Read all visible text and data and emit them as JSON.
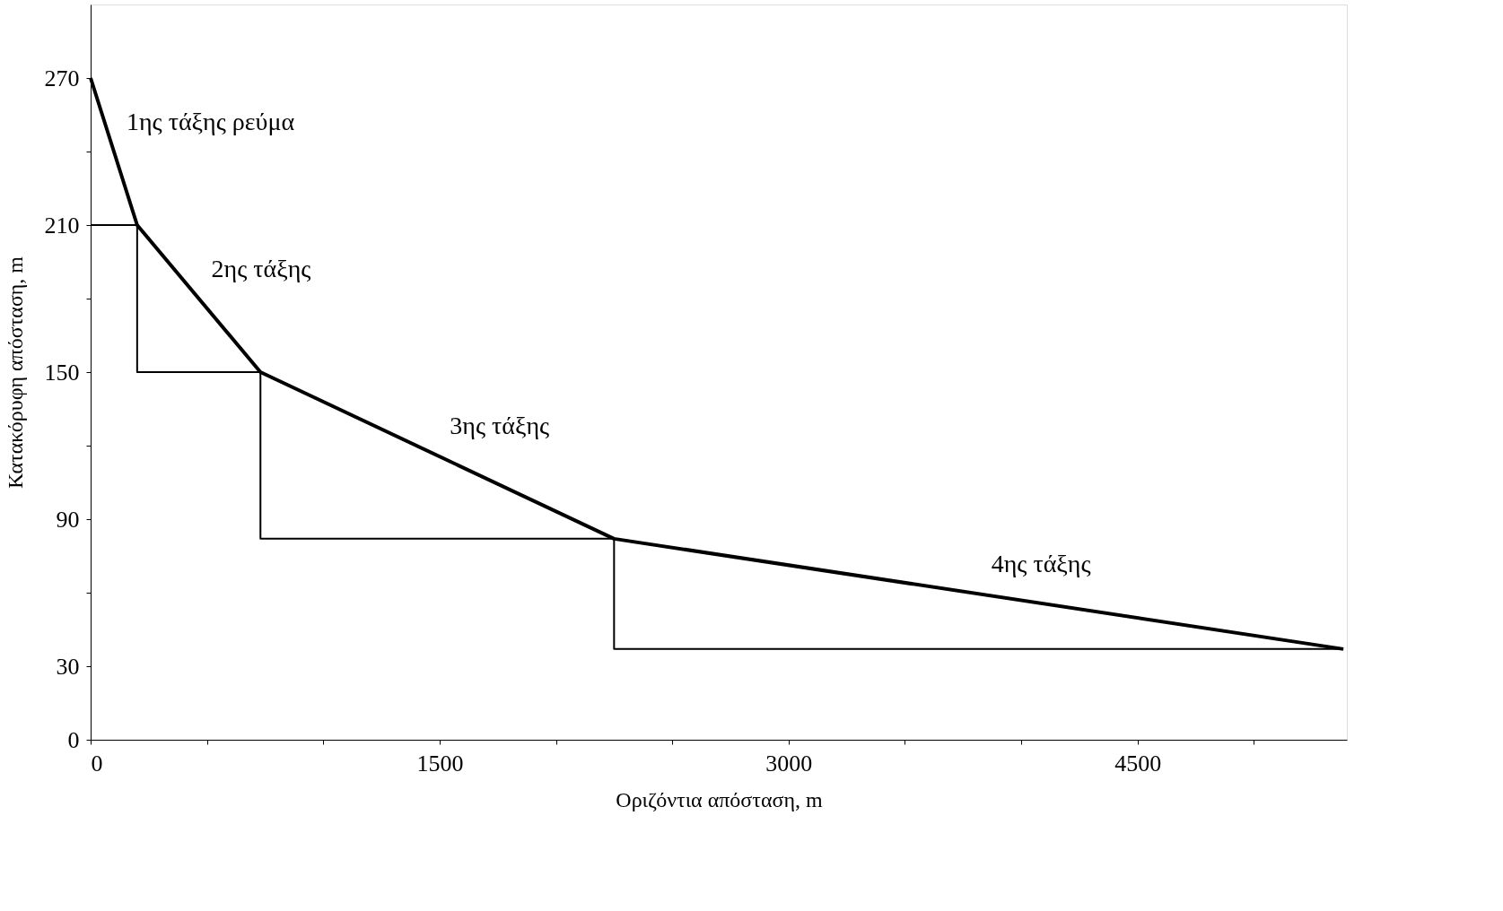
{
  "chart_data": {
    "type": "line",
    "xlabel": "Οριζόντια απόσταση, m",
    "ylabel": "Κατακόρυφη απόσταση, m",
    "xlim": [
      0,
      5400
    ],
    "ylim": [
      0,
      300
    ],
    "xticks": [
      0,
      {
        "value": 500,
        "label": null
      },
      {
        "value": 1000,
        "label": null
      },
      1500,
      {
        "value": 2000,
        "label": null
      },
      {
        "value": 2500,
        "label": null
      },
      3000,
      {
        "value": 3500,
        "label": null
      },
      {
        "value": 4000,
        "label": null
      },
      4500,
      {
        "value": 5000,
        "label": null
      }
    ],
    "yticks": [
      0,
      30,
      {
        "value": 60,
        "label": null
      },
      90,
      {
        "value": 120,
        "label": null
      },
      150,
      {
        "value": 180,
        "label": null
      },
      210,
      {
        "value": 240,
        "label": null
      },
      270
    ],
    "grid": false,
    "series": [
      {
        "color": "#000000",
        "x": [
          0,
          200,
          730,
          2250,
          5385
        ],
        "values": [
          270,
          210,
          150,
          82,
          37
        ]
      },
      {
        "color": "#000000",
        "x": [
          0,
          200,
          200,
          730,
          730,
          2250,
          2250,
          5385
        ],
        "values": [
          210,
          210,
          150,
          150,
          82,
          82,
          37,
          37
        ]
      }
    ],
    "annotations": [
      "1ης τάξης ρεύμα",
      "2ης τάξης",
      "3ης τάξης",
      "4ης τάξης"
    ]
  }
}
